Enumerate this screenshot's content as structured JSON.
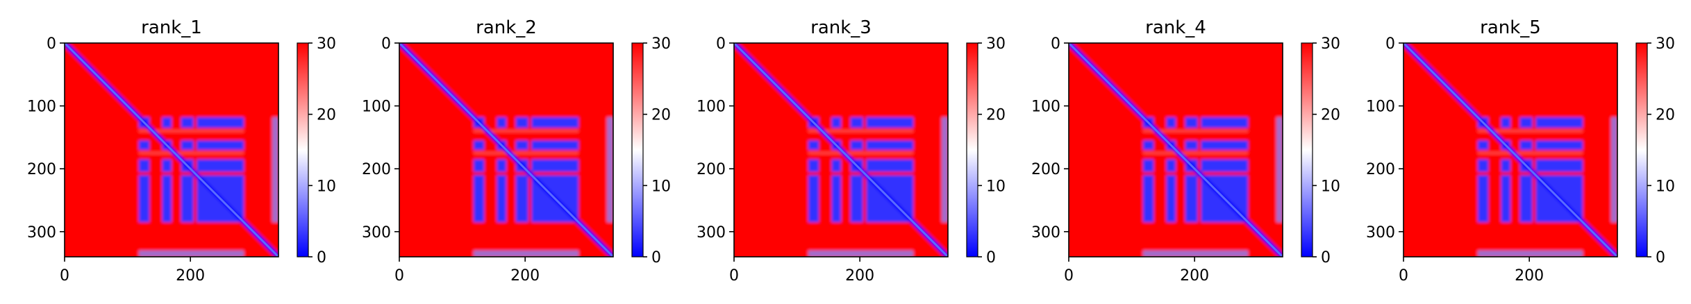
{
  "chart_data": [
    {
      "type": "heatmap",
      "title": "rank_1",
      "xlim": [
        0,
        340
      ],
      "ylim": [
        340,
        0
      ],
      "xticks": [
        0,
        200
      ],
      "yticks": [
        0,
        100,
        200,
        300
      ],
      "colorbar": {
        "ticks": [
          0,
          10,
          20,
          30
        ],
        "range": [
          0,
          30
        ]
      },
      "colormap": [
        "#0000ff",
        "#ffffff",
        "#ff0000"
      ],
      "blocks": {
        "low_spans": [
          [
            118,
            135
          ],
          [
            155,
            170
          ],
          [
            185,
            205
          ],
          [
            210,
            285
          ]
        ],
        "high_bands": [
          140,
          175
        ],
        "edge_band": [
          330,
          340
        ]
      }
    },
    {
      "type": "heatmap",
      "title": "rank_2",
      "xlim": [
        0,
        340
      ],
      "ylim": [
        340,
        0
      ],
      "xticks": [
        0,
        200
      ],
      "yticks": [
        0,
        100,
        200,
        300
      ],
      "colorbar": {
        "ticks": [
          0,
          10,
          20,
          30
        ],
        "range": [
          0,
          30
        ]
      },
      "colormap": [
        "#0000ff",
        "#ffffff",
        "#ff0000"
      ],
      "blocks": {
        "low_spans": [
          [
            118,
            135
          ],
          [
            155,
            170
          ],
          [
            185,
            205
          ],
          [
            210,
            285
          ]
        ],
        "high_bands": [
          140,
          175
        ],
        "edge_band": [
          330,
          340
        ]
      }
    },
    {
      "type": "heatmap",
      "title": "rank_3",
      "xlim": [
        0,
        340
      ],
      "ylim": [
        340,
        0
      ],
      "xticks": [
        0,
        200
      ],
      "yticks": [
        0,
        100,
        200,
        300
      ],
      "colorbar": {
        "ticks": [
          0,
          10,
          20,
          30
        ],
        "range": [
          0,
          30
        ]
      },
      "colormap": [
        "#0000ff",
        "#ffffff",
        "#ff0000"
      ],
      "blocks": {
        "low_spans": [
          [
            118,
            135
          ],
          [
            155,
            170
          ],
          [
            185,
            205
          ],
          [
            210,
            285
          ]
        ],
        "high_bands": [
          140,
          175
        ],
        "edge_band": [
          330,
          340
        ]
      }
    },
    {
      "type": "heatmap",
      "title": "rank_4",
      "xlim": [
        0,
        340
      ],
      "ylim": [
        340,
        0
      ],
      "xticks": [
        0,
        200
      ],
      "yticks": [
        0,
        100,
        200,
        300
      ],
      "colorbar": {
        "ticks": [
          0,
          10,
          20,
          30
        ],
        "range": [
          0,
          30
        ]
      },
      "colormap": [
        "#0000ff",
        "#ffffff",
        "#ff0000"
      ],
      "blocks": {
        "low_spans": [
          [
            118,
            135
          ],
          [
            155,
            170
          ],
          [
            185,
            205
          ],
          [
            210,
            285
          ]
        ],
        "high_bands": [
          140,
          175
        ],
        "edge_band": [
          330,
          340
        ]
      }
    },
    {
      "type": "heatmap",
      "title": "rank_5",
      "xlim": [
        0,
        340
      ],
      "ylim": [
        340,
        0
      ],
      "xticks": [
        0,
        200
      ],
      "yticks": [
        0,
        100,
        200,
        300
      ],
      "colorbar": {
        "ticks": [
          0,
          10,
          20,
          30
        ],
        "range": [
          0,
          30
        ]
      },
      "colormap": [
        "#0000ff",
        "#ffffff",
        "#ff0000"
      ],
      "blocks": {
        "low_spans": [
          [
            118,
            135
          ],
          [
            155,
            170
          ],
          [
            185,
            205
          ],
          [
            210,
            285
          ]
        ],
        "high_bands": [
          140,
          175
        ],
        "edge_band": [
          330,
          340
        ]
      }
    }
  ]
}
